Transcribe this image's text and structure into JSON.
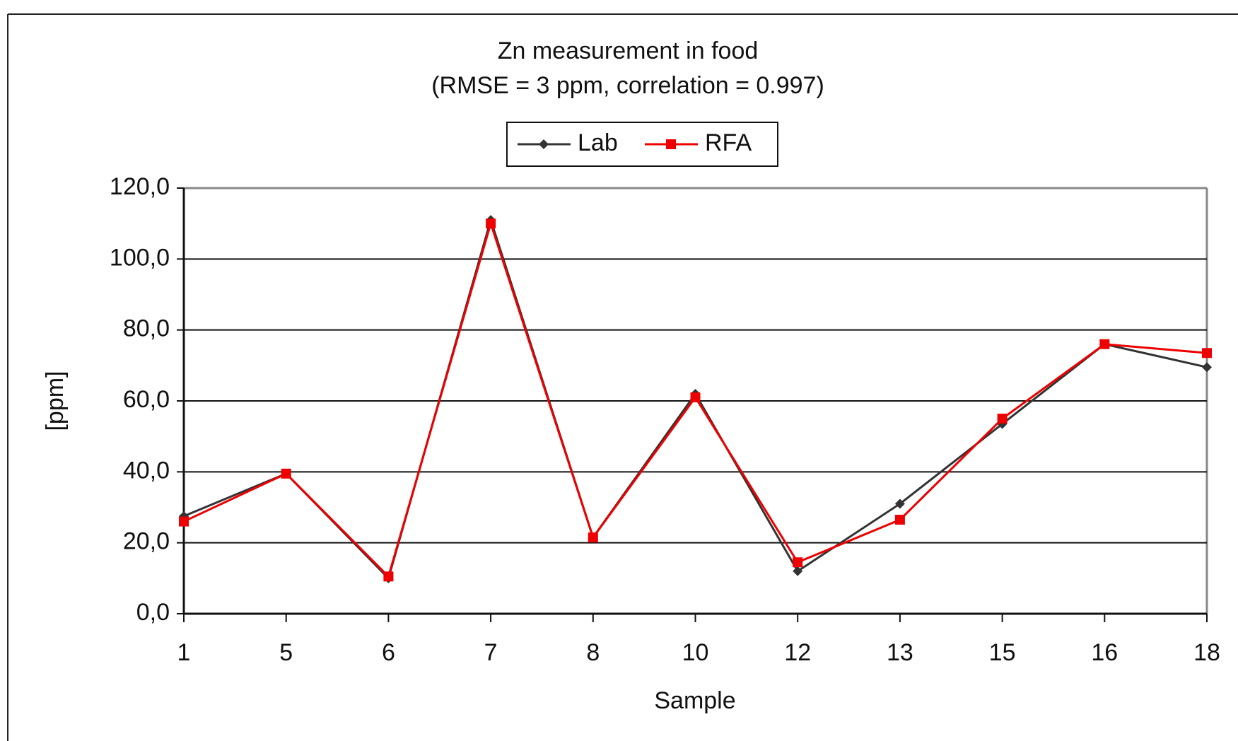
{
  "chart_data": {
    "type": "line",
    "title": "Zn measurement in food",
    "subtitle": "(RMSE = 3 ppm, correlation = 0.997)",
    "x_label": "Sample",
    "y_label": "[ppm]",
    "categories": [
      "1",
      "5",
      "6",
      "7",
      "8",
      "10",
      "12",
      "13",
      "15",
      "16",
      "18"
    ],
    "series": [
      {
        "name": "Lab",
        "color": "#333333",
        "marker": "diamond",
        "values": [
          27.5,
          39.5,
          10,
          111,
          21.5,
          62,
          12,
          31,
          53.5,
          76,
          69.5
        ]
      },
      {
        "name": "RFA",
        "color": "#ee0000",
        "marker": "square",
        "values": [
          26,
          39.5,
          10.5,
          110,
          21.5,
          61,
          14.5,
          26.5,
          55,
          76,
          73.5
        ]
      }
    ],
    "ylim": [
      0,
      120
    ],
    "yticks": [
      {
        "value": 0,
        "label": "0,0"
      },
      {
        "value": 20,
        "label": "20,0"
      },
      {
        "value": 40,
        "label": "40,0"
      },
      {
        "value": 60,
        "label": "60,0"
      },
      {
        "value": 80,
        "label": "80,0"
      },
      {
        "value": 100,
        "label": "100,0"
      },
      {
        "value": 120,
        "label": "120,0"
      }
    ],
    "grid": true,
    "legend": "top"
  }
}
